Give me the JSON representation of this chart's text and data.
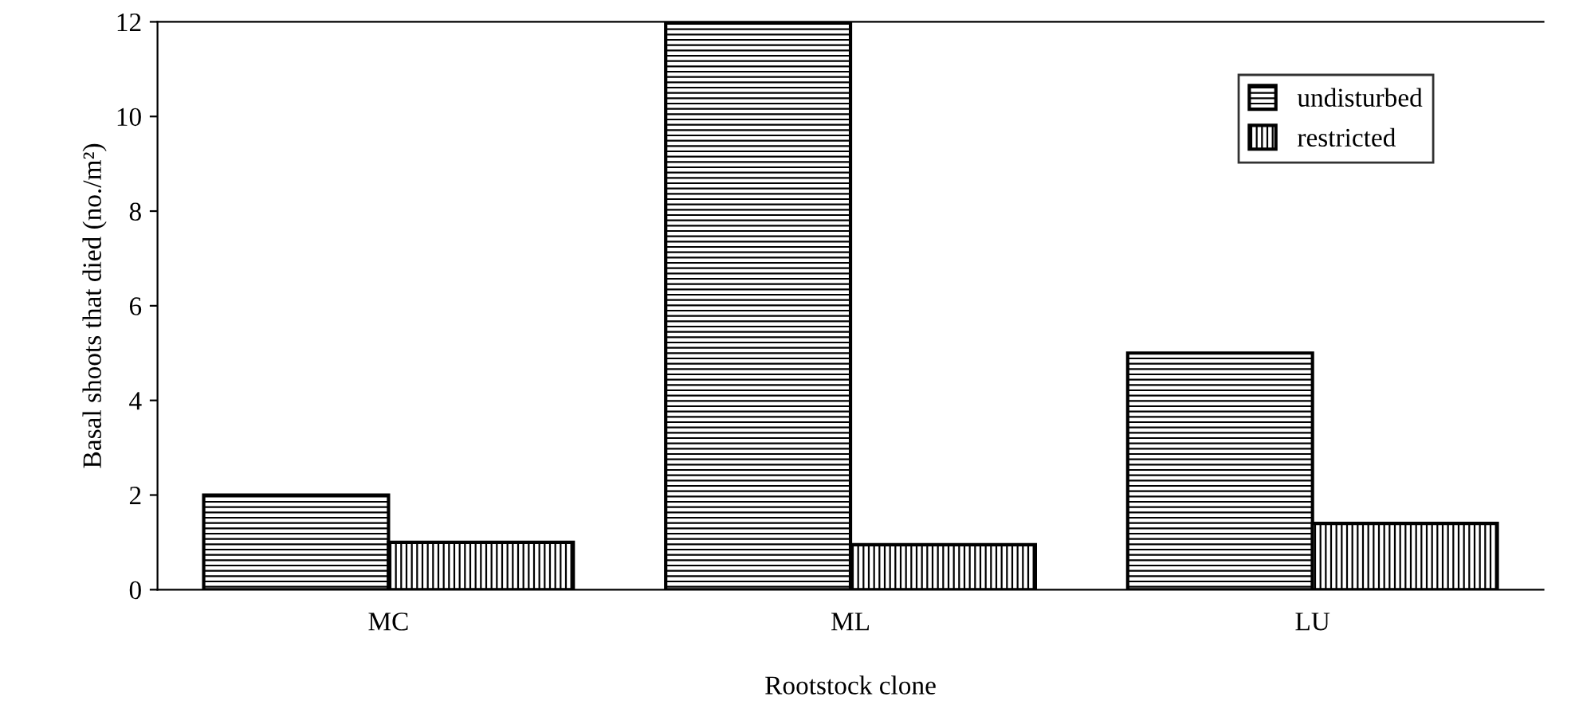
{
  "chart_data": {
    "type": "bar",
    "xlabel": "Rootstock clone",
    "ylabel": "Basal shoots that died (no./m²)",
    "categories": [
      "MC",
      "ML",
      "LU"
    ],
    "series": [
      {
        "name": "undisturbed",
        "color": "#000000",
        "values": [
          2,
          12,
          5
        ]
      },
      {
        "name": "restricted",
        "color": "#000000",
        "values": [
          1,
          0.95,
          1.4
        ]
      }
    ],
    "ylim": [
      0,
      12
    ],
    "yticks": [
      0,
      2,
      4,
      6,
      8,
      10,
      12
    ],
    "grid": false,
    "legend": "top right"
  }
}
